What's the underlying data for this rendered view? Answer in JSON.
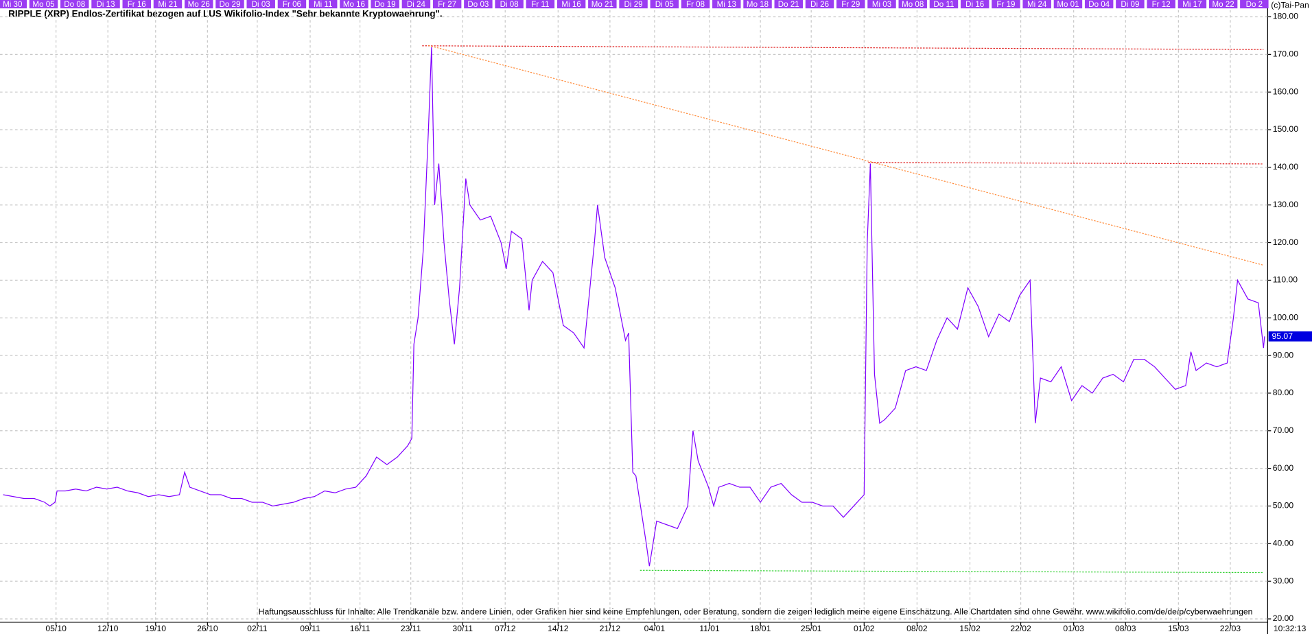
{
  "chart_data": {
    "type": "line",
    "title": "RIPPLE (XRP) Endlos-Zertifikat bezogen auf LUS Wikifolio-Index \"Sehr bekannte Kryptowaehrung\".",
    "top_labels": [
      "Mi 30",
      "Mo 05",
      "Do 08",
      "Di 13",
      "Fr 16",
      "Mi 21",
      "Mo 26",
      "Do 29",
      "Di 03",
      "Fr 06",
      "Mi 11",
      "Mo 16",
      "Do 19",
      "Di 24",
      "Fr 27",
      "Do 03",
      "Di 08",
      "Fr 11",
      "Mi 16",
      "Mo 21",
      "Di 29",
      "Di 05",
      "Fr 08",
      "Mi 13",
      "Mo 18",
      "Do 21",
      "Di 26",
      "Fr 29",
      "Mi 03",
      "Mo 08",
      "Do 11",
      "Di 16",
      "Fr 19",
      "Mi 24",
      "Mo 01",
      "Do 04",
      "Di 09",
      "Fr 12",
      "Mi 17",
      "Mo 22",
      "Do 2"
    ],
    "copyright": "(c)Tai-Pan",
    "time": "10:32:13",
    "disclaimer": "Haftungsausschluss für Inhalte: Alle Trendkanäle bzw. andere Linien, oder Grafiken hier sind keine Empfehlungen, oder Beratung, sondern die zeigen lediglich meine eigene Einschätzung. Alle Chartdaten sind ohne Gewähr.  www.wikifolio.com/de/de/p/cyberwaehrungen",
    "grid": true,
    "xlim": [
      -0.3,
      121.9
    ],
    "ylim": [
      19.1,
      181.8
    ],
    "xticks": [
      {
        "value": 5.1,
        "label": "05/10"
      },
      {
        "value": 10.1,
        "label": "12/10"
      },
      {
        "value": 14.7,
        "label": "19/10"
      },
      {
        "value": 19.7,
        "label": "26/10"
      },
      {
        "value": 24.5,
        "label": "02/11"
      },
      {
        "value": 29.6,
        "label": "09/11"
      },
      {
        "value": 34.4,
        "label": "16/11"
      },
      {
        "value": 39.3,
        "label": "23/11"
      },
      {
        "value": 44.3,
        "label": "30/11"
      },
      {
        "value": 48.4,
        "label": "07/12"
      },
      {
        "value": 53.5,
        "label": "14/12"
      },
      {
        "value": 58.5,
        "label": "21/12"
      },
      {
        "value": 62.8,
        "label": "04/01"
      },
      {
        "value": 68.1,
        "label": "11/01"
      },
      {
        "value": 73.0,
        "label": "18/01"
      },
      {
        "value": 77.9,
        "label": "25/01"
      },
      {
        "value": 83.0,
        "label": "01/02"
      },
      {
        "value": 88.1,
        "label": "08/02"
      },
      {
        "value": 93.2,
        "label": "15/02"
      },
      {
        "value": 98.1,
        "label": "22/02"
      },
      {
        "value": 103.2,
        "label": "01/03"
      },
      {
        "value": 108.2,
        "label": "08/03"
      },
      {
        "value": 113.3,
        "label": "15/03"
      },
      {
        "value": 118.3,
        "label": "22/03"
      }
    ],
    "yticks": [
      {
        "value": 20,
        "label": "20.00"
      },
      {
        "value": 30,
        "label": "30.00"
      },
      {
        "value": 40,
        "label": "40.00"
      },
      {
        "value": 50,
        "label": "50.00"
      },
      {
        "value": 60,
        "label": "60.00"
      },
      {
        "value": 70,
        "label": "70.00"
      },
      {
        "value": 80,
        "label": "80.00"
      },
      {
        "value": 90,
        "label": "90.00"
      },
      {
        "value": 100,
        "label": "100.00"
      },
      {
        "value": 110,
        "label": "110.00"
      },
      {
        "value": 120,
        "label": "120.00"
      },
      {
        "value": 130,
        "label": "130.00"
      },
      {
        "value": 140,
        "label": "140.00"
      },
      {
        "value": 150,
        "label": "150.00"
      },
      {
        "value": 160,
        "label": "160.00"
      },
      {
        "value": 170,
        "label": "170.00"
      },
      {
        "value": 180,
        "label": "180.00"
      }
    ],
    "x": [
      0,
      1,
      2,
      3,
      4,
      4.5,
      5,
      5.2,
      6,
      7,
      8,
      9,
      10,
      11,
      12,
      13,
      14,
      15,
      16,
      17,
      17.5,
      18,
      19,
      20,
      21,
      22,
      23,
      24,
      25,
      26,
      27,
      28,
      29,
      30,
      31,
      32,
      33,
      34,
      35,
      36,
      37,
      38,
      39,
      39.4,
      39.6,
      40,
      40.5,
      41,
      41.3,
      41.6,
      42,
      42.5,
      43,
      43.5,
      44,
      44.6,
      45,
      46,
      47,
      48,
      48.5,
      49,
      50,
      50.7,
      51,
      52,
      53,
      54,
      55,
      56,
      57,
      57.3,
      58,
      59,
      60,
      60.3,
      60.7,
      61,
      62,
      62.3,
      63,
      64,
      65,
      66,
      66.5,
      67,
      68,
      68.5,
      69,
      70,
      71,
      72,
      73,
      74,
      75,
      76,
      77,
      78,
      79,
      80,
      81,
      82,
      83,
      83.3,
      83.6,
      84,
      84.5,
      85,
      86,
      87,
      88,
      89,
      90,
      91,
      92,
      93,
      94,
      95,
      96,
      97,
      98,
      99,
      99.5,
      100,
      101,
      102,
      103,
      104,
      105,
      106,
      107,
      108,
      109,
      110,
      111,
      112,
      113,
      114,
      114.5,
      115,
      116,
      117,
      118,
      118.6,
      119,
      120,
      121,
      121.5,
      121.6
    ],
    "series": [
      {
        "color": "#8000ff",
        "values": [
          53,
          52.5,
          52,
          52,
          51,
          50,
          51,
          54,
          54,
          54.5,
          54,
          55,
          54.5,
          55,
          54,
          53.5,
          52.5,
          53,
          52.5,
          53,
          59,
          55,
          54,
          53,
          53,
          52,
          52,
          51,
          51,
          50,
          50.5,
          51,
          52,
          52.5,
          54,
          53.5,
          54.5,
          55,
          58,
          63,
          61,
          63,
          66,
          68,
          93,
          100,
          118,
          150,
          172,
          130,
          141,
          120,
          105,
          93,
          108,
          137,
          130,
          126,
          127,
          120,
          113,
          123,
          121,
          102,
          110,
          115,
          112,
          98,
          96,
          92,
          120,
          130,
          116,
          108,
          94,
          96,
          59,
          58,
          40,
          34,
          46,
          45,
          44,
          50,
          70,
          62,
          55,
          50,
          55,
          56,
          55,
          55,
          51,
          55,
          56,
          53,
          51,
          51,
          50,
          50,
          47,
          50,
          53,
          120,
          141,
          85,
          72,
          73,
          76,
          86,
          87,
          86,
          94,
          100,
          97,
          108,
          103,
          95,
          101,
          99,
          106,
          110,
          72,
          84,
          83,
          87,
          78,
          82,
          80,
          84,
          85,
          83,
          89,
          89,
          87,
          84,
          81,
          82,
          91,
          86,
          88,
          87,
          88,
          100,
          110,
          105,
          104,
          92,
          95.07
        ]
      }
    ],
    "trend_lines": [
      {
        "color": "#e02020",
        "x": [
          40.4,
          121.5
        ],
        "y": [
          172.3,
          171.3
        ]
      },
      {
        "color": "#e02020",
        "x": [
          83.4,
          121.5
        ],
        "y": [
          141.3,
          140.9
        ]
      },
      {
        "color": "#ff8c3c",
        "x": [
          41.0,
          121.5
        ],
        "y": [
          172.4,
          114
        ]
      },
      {
        "color": "#30d030",
        "x": [
          61.4,
          121.5
        ],
        "y": [
          32.9,
          32.3
        ]
      }
    ]
  }
}
